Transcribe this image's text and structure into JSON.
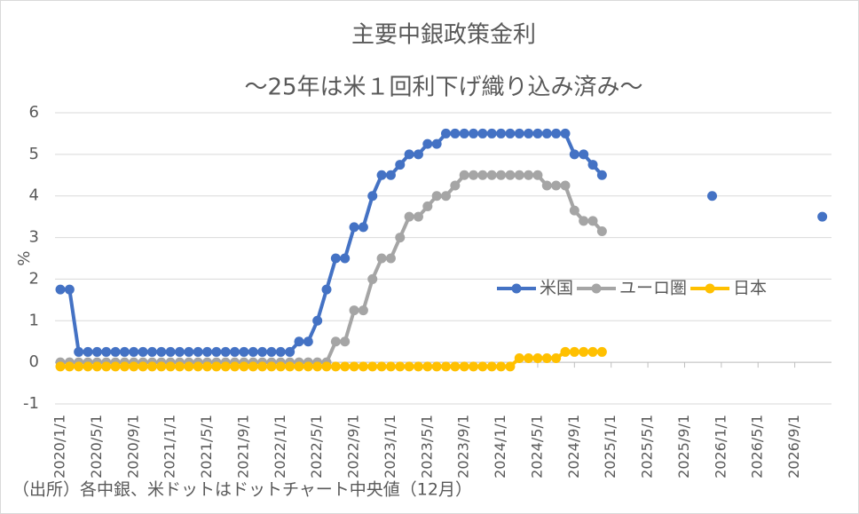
{
  "chart_data": {
    "type": "line",
    "title": "主要中銀政策金利",
    "subtitle": "～25年は米１回利下げ織り込み済み～",
    "y_label": "%",
    "footnote": "（出所）各中銀、米ドットはドットチャート中央値（12月）",
    "x": [
      "2020/1/1",
      "2020/2/1",
      "2020/3/1",
      "2020/4/1",
      "2020/5/1",
      "2020/6/1",
      "2020/7/1",
      "2020/8/1",
      "2020/9/1",
      "2020/10/1",
      "2020/11/1",
      "2020/12/1",
      "2021/1/1",
      "2021/2/1",
      "2021/3/1",
      "2021/4/1",
      "2021/5/1",
      "2021/6/1",
      "2021/7/1",
      "2021/8/1",
      "2021/9/1",
      "2021/10/1",
      "2021/11/1",
      "2021/12/1",
      "2022/1/1",
      "2022/2/1",
      "2022/3/1",
      "2022/4/1",
      "2022/5/1",
      "2022/6/1",
      "2022/7/1",
      "2022/8/1",
      "2022/9/1",
      "2022/10/1",
      "2022/11/1",
      "2022/12/1",
      "2023/1/1",
      "2023/2/1",
      "2023/3/1",
      "2023/4/1",
      "2023/5/1",
      "2023/6/1",
      "2023/7/1",
      "2023/8/1",
      "2023/9/1",
      "2023/10/1",
      "2023/11/1",
      "2023/12/1",
      "2024/1/1",
      "2024/2/1",
      "2024/3/1",
      "2024/4/1",
      "2024/5/1",
      "2024/6/1",
      "2024/7/1",
      "2024/8/1",
      "2024/9/1",
      "2024/10/1",
      "2024/11/1",
      "2024/12/1",
      "2025/1/1",
      "2025/2/1",
      "2025/3/1",
      "2025/4/1",
      "2025/5/1",
      "2025/6/1",
      "2025/7/1",
      "2025/8/1",
      "2025/9/1",
      "2025/10/1",
      "2025/11/1",
      "2025/12/1",
      "2026/1/1",
      "2026/2/1",
      "2026/3/1",
      "2026/4/1",
      "2026/5/1",
      "2026/6/1",
      "2026/7/1",
      "2026/8/1",
      "2026/9/1",
      "2026/10/1",
      "2026/11/1",
      "2026/12/1"
    ],
    "series": [
      {
        "name": "米国",
        "color": "#4472c4",
        "values": [
          1.75,
          1.75,
          0.25,
          0.25,
          0.25,
          0.25,
          0.25,
          0.25,
          0.25,
          0.25,
          0.25,
          0.25,
          0.25,
          0.25,
          0.25,
          0.25,
          0.25,
          0.25,
          0.25,
          0.25,
          0.25,
          0.25,
          0.25,
          0.25,
          0.25,
          0.25,
          0.5,
          0.5,
          1.0,
          1.75,
          2.5,
          2.5,
          3.25,
          3.25,
          4.0,
          4.5,
          4.5,
          4.75,
          5.0,
          5.0,
          5.25,
          5.25,
          5.5,
          5.5,
          5.5,
          5.5,
          5.5,
          5.5,
          5.5,
          5.5,
          5.5,
          5.5,
          5.5,
          5.5,
          5.5,
          5.5,
          5.0,
          5.0,
          4.75,
          4.5,
          null,
          null,
          null,
          null,
          null,
          null,
          null,
          null,
          null,
          null,
          null,
          4.0,
          null,
          null,
          null,
          null,
          null,
          null,
          null,
          null,
          null,
          null,
          null,
          3.5
        ]
      },
      {
        "name": "ユーロ圏",
        "color": "#a5a5a5",
        "values": [
          0,
          0,
          0,
          0,
          0,
          0,
          0,
          0,
          0,
          0,
          0,
          0,
          0,
          0,
          0,
          0,
          0,
          0,
          0,
          0,
          0,
          0,
          0,
          0,
          0,
          0,
          0,
          0,
          0,
          0,
          0.5,
          0.5,
          1.25,
          1.25,
          2.0,
          2.5,
          2.5,
          3.0,
          3.5,
          3.5,
          3.75,
          4.0,
          4.0,
          4.25,
          4.5,
          4.5,
          4.5,
          4.5,
          4.5,
          4.5,
          4.5,
          4.5,
          4.5,
          4.25,
          4.25,
          4.25,
          3.65,
          3.4,
          3.4,
          3.15,
          null,
          null,
          null,
          null,
          null,
          null,
          null,
          null,
          null,
          null,
          null,
          null,
          null,
          null,
          null,
          null,
          null,
          null,
          null,
          null,
          null,
          null,
          null,
          null
        ]
      },
      {
        "name": "日本",
        "color": "#ffc000",
        "values": [
          -0.1,
          -0.1,
          -0.1,
          -0.1,
          -0.1,
          -0.1,
          -0.1,
          -0.1,
          -0.1,
          -0.1,
          -0.1,
          -0.1,
          -0.1,
          -0.1,
          -0.1,
          -0.1,
          -0.1,
          -0.1,
          -0.1,
          -0.1,
          -0.1,
          -0.1,
          -0.1,
          -0.1,
          -0.1,
          -0.1,
          -0.1,
          -0.1,
          -0.1,
          -0.1,
          -0.1,
          -0.1,
          -0.1,
          -0.1,
          -0.1,
          -0.1,
          -0.1,
          -0.1,
          -0.1,
          -0.1,
          -0.1,
          -0.1,
          -0.1,
          -0.1,
          -0.1,
          -0.1,
          -0.1,
          -0.1,
          -0.1,
          -0.1,
          0.1,
          0.1,
          0.1,
          0.1,
          0.1,
          0.25,
          0.25,
          0.25,
          0.25,
          0.25,
          null,
          null,
          null,
          null,
          null,
          null,
          null,
          null,
          null,
          null,
          null,
          null,
          null,
          null,
          null,
          null,
          null,
          null,
          null,
          null,
          null,
          null,
          null,
          null
        ]
      }
    ],
    "xlim": [
      "2020/1/1",
      "2027/1/1"
    ],
    "xticks": [
      "2020/1/1",
      "2020/5/1",
      "2020/9/1",
      "2021/1/1",
      "2021/5/1",
      "2021/9/1",
      "2022/1/1",
      "2022/5/1",
      "2022/9/1",
      "2023/1/1",
      "2023/5/1",
      "2023/9/1",
      "2024/1/1",
      "2024/5/1",
      "2024/9/1",
      "2025/1/1",
      "2025/5/1",
      "2025/9/1",
      "2026/1/1",
      "2026/5/1",
      "2026/9/1"
    ],
    "ylim": [
      -1,
      6
    ],
    "yticks": [
      -1,
      0,
      1,
      2,
      3,
      4,
      5,
      6
    ],
    "grid": true,
    "legend": "right"
  }
}
